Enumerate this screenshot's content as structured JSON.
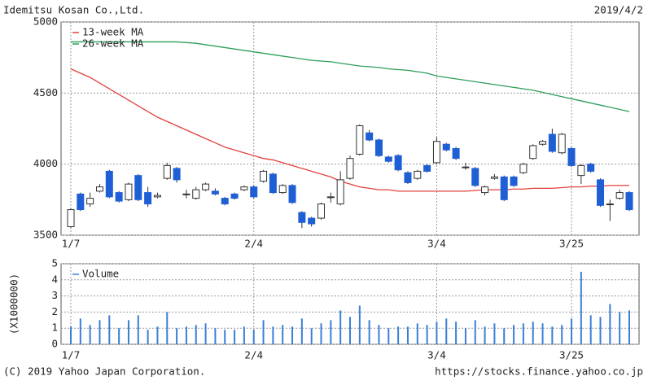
{
  "header": {
    "company": "Idemitsu Kosan Co.,Ltd.",
    "date": "2019/4/2"
  },
  "footer": {
    "copyright": "(C) 2019 Yahoo Japan Corporation.",
    "url": "https://stocks.finance.yahoo.co.jp"
  },
  "chart_data": [
    {
      "type": "candlestick",
      "categories": [
        "1/7",
        null,
        null,
        null,
        null,
        null,
        null,
        null,
        null,
        null,
        null,
        null,
        null,
        null,
        null,
        null,
        null,
        null,
        null,
        "2/4",
        null,
        null,
        null,
        null,
        null,
        null,
        null,
        null,
        null,
        null,
        null,
        null,
        null,
        null,
        null,
        null,
        null,
        null,
        "3/4",
        null,
        null,
        null,
        null,
        null,
        null,
        null,
        null,
        null,
        null,
        null,
        null,
        null,
        "3/25",
        null,
        null,
        null,
        null,
        null,
        null
      ],
      "open": [
        3560,
        3790,
        3720,
        3810,
        3950,
        3800,
        3750,
        3920,
        3800,
        3770,
        3900,
        3970,
        3790,
        3760,
        3820,
        3810,
        3760,
        3790,
        3820,
        3840,
        3880,
        3930,
        3800,
        3850,
        3660,
        3620,
        3620,
        3770,
        3720,
        3900,
        4070,
        4220,
        4170,
        4050,
        4060,
        3940,
        3900,
        3990,
        4010,
        4140,
        4110,
        3980,
        3970,
        3800,
        3900,
        3910,
        3910,
        3940,
        4040,
        4140,
        4210,
        4080,
        4110,
        3920,
        4000,
        3890,
        3720,
        3760,
        3800
      ],
      "high": [
        3690,
        3800,
        3800,
        3860,
        3960,
        3810,
        3870,
        3930,
        3840,
        3800,
        4010,
        3980,
        3820,
        3840,
        3870,
        3830,
        3770,
        3800,
        3850,
        3850,
        3960,
        3940,
        3860,
        3860,
        3670,
        3630,
        3730,
        3800,
        3950,
        4060,
        4280,
        4240,
        4180,
        4060,
        4070,
        3950,
        3960,
        4000,
        4190,
        4150,
        4120,
        4010,
        3980,
        3850,
        3930,
        3920,
        3920,
        4010,
        4140,
        4170,
        4250,
        4220,
        4120,
        4000,
        4010,
        3900,
        3750,
        3820,
        3810
      ],
      "low": [
        3550,
        3670,
        3700,
        3800,
        3760,
        3730,
        3740,
        3740,
        3700,
        3760,
        3890,
        3870,
        3760,
        3750,
        3810,
        3780,
        3710,
        3750,
        3810,
        3760,
        3870,
        3790,
        3790,
        3720,
        3550,
        3560,
        3610,
        3730,
        3710,
        3890,
        4060,
        4160,
        4050,
        4010,
        3950,
        3860,
        3890,
        3940,
        4000,
        4090,
        4030,
        3960,
        3840,
        3780,
        3890,
        3740,
        3840,
        3930,
        4030,
        4130,
        4080,
        4070,
        3980,
        3860,
        3940,
        3700,
        3600,
        3750,
        3670
      ],
      "close": [
        3680,
        3680,
        3760,
        3840,
        3770,
        3740,
        3860,
        3750,
        3720,
        3780,
        3990,
        3890,
        3790,
        3820,
        3860,
        3790,
        3720,
        3760,
        3840,
        3770,
        3950,
        3800,
        3850,
        3730,
        3590,
        3580,
        3720,
        3770,
        3890,
        4040,
        4270,
        4170,
        4060,
        4020,
        3960,
        3870,
        3950,
        3950,
        4160,
        4100,
        4040,
        3980,
        3850,
        3840,
        3910,
        3750,
        3850,
        4000,
        4130,
        4160,
        4090,
        4210,
        3990,
        3990,
        3950,
        3710,
        3720,
        3800,
        3680
      ],
      "up_color": "#ffffff",
      "down_color": "#1f5fd6",
      "series": [
        {
          "name": "13-week MA",
          "color": "#e2413b",
          "values": [
            4670,
            4640,
            4610,
            4570,
            4530,
            4490,
            4450,
            4410,
            4370,
            4330,
            4300,
            4270,
            4240,
            4210,
            4180,
            4150,
            4120,
            4100,
            4080,
            4060,
            4040,
            4030,
            4010,
            3990,
            3970,
            3950,
            3930,
            3910,
            3880,
            3860,
            3840,
            3830,
            3820,
            3820,
            3810,
            3810,
            3810,
            3810,
            3810,
            3810,
            3810,
            3810,
            3815,
            3820,
            3820,
            3820,
            3825,
            3825,
            3830,
            3830,
            3830,
            3835,
            3840,
            3840,
            3845,
            3845,
            3850,
            3850,
            3850
          ]
        },
        {
          "name": "26-week MA",
          "color": "#2e9e5a",
          "values": [
            4860,
            4860,
            4860,
            4860,
            4860,
            4860,
            4860,
            4860,
            4860,
            4860,
            4860,
            4860,
            4855,
            4850,
            4840,
            4830,
            4820,
            4810,
            4800,
            4790,
            4780,
            4770,
            4760,
            4750,
            4740,
            4730,
            4725,
            4720,
            4710,
            4700,
            4690,
            4685,
            4680,
            4670,
            4665,
            4660,
            4650,
            4640,
            4620,
            4610,
            4600,
            4590,
            4580,
            4570,
            4560,
            4550,
            4540,
            4530,
            4520,
            4505,
            4490,
            4475,
            4460,
            4445,
            4430,
            4415,
            4400,
            4385,
            4370
          ]
        }
      ],
      "ylim": [
        3500,
        5000
      ],
      "yticks": [
        3500,
        4000,
        4500,
        5000
      ],
      "grid": true,
      "legend": "top-left"
    },
    {
      "type": "bar",
      "categories": [
        "1/7",
        null,
        null,
        null,
        null,
        null,
        null,
        null,
        null,
        null,
        null,
        null,
        null,
        null,
        null,
        null,
        null,
        null,
        null,
        "2/4",
        null,
        null,
        null,
        null,
        null,
        null,
        null,
        null,
        null,
        null,
        null,
        null,
        null,
        null,
        null,
        null,
        null,
        null,
        "3/4",
        null,
        null,
        null,
        null,
        null,
        null,
        null,
        null,
        null,
        null,
        null,
        null,
        null,
        "3/25",
        null,
        null,
        null,
        null,
        null,
        null
      ],
      "ylabel": "(X1000000)",
      "series": [
        {
          "name": "Volume",
          "color": "#3a7fd6",
          "values": [
            1.1,
            1.6,
            1.2,
            1.5,
            1.8,
            1.0,
            1.5,
            1.8,
            0.9,
            1.1,
            2.0,
            1.0,
            1.1,
            1.2,
            1.3,
            1.0,
            0.9,
            0.9,
            1.1,
            0.9,
            1.5,
            1.1,
            1.2,
            1.1,
            1.6,
            1.0,
            1.3,
            1.5,
            2.1,
            1.7,
            2.4,
            1.5,
            1.2,
            1.0,
            1.1,
            1.1,
            1.3,
            1.2,
            1.4,
            1.6,
            1.4,
            1.0,
            1.5,
            1.1,
            1.3,
            1.0,
            1.2,
            1.3,
            1.4,
            1.3,
            1.1,
            1.2,
            1.6,
            4.5,
            1.8,
            1.7,
            2.5,
            2.0,
            2.1
          ]
        }
      ],
      "ylim": [
        0,
        5
      ],
      "yticks": [
        0,
        1,
        2,
        3,
        4,
        5
      ],
      "grid": true,
      "legend": "top-left"
    }
  ]
}
